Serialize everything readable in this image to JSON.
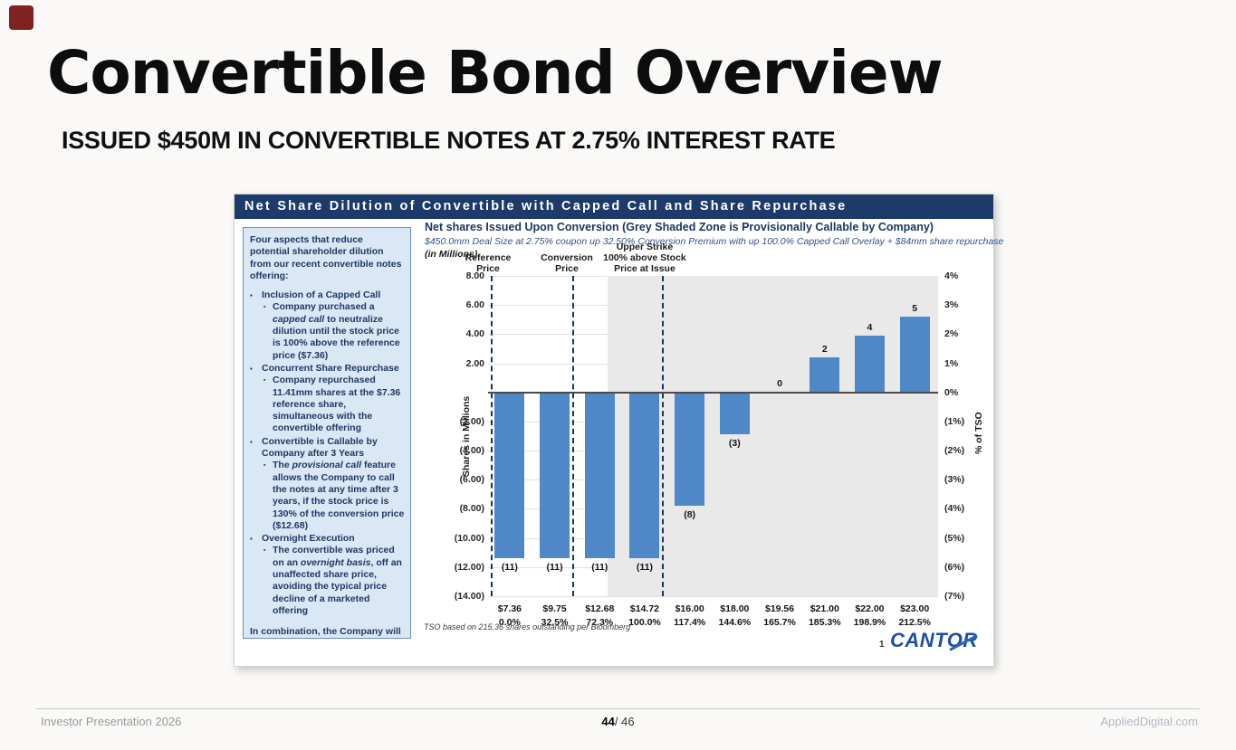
{
  "slide": {
    "title": "Convertible Bond Overview",
    "subtitle": "ISSUED $450M IN CONVERTIBLE NOTES AT 2.75% INTEREST RATE",
    "footer": {
      "left": "Investor Presentation  2026",
      "page_current": "44",
      "page_rest": "/ 46",
      "right": "AppliedDigital.com"
    }
  },
  "panel": {
    "banner": "Net Share Dilution of Convertible with Capped Call and Share Repurchase",
    "sidebar": {
      "header": "Four aspects that reduce potential shareholder dilution from our recent convertible notes offering:",
      "bullets": [
        {
          "title": "Inclusion of a Capped Call",
          "detail_pre": "Company purchased a ",
          "detail_italic": "capped call",
          "detail_post": " to neutralize dilution until the stock price is 100% above the reference price ($7.36)"
        },
        {
          "title": "Concurrent Share Repurchase",
          "detail_pre": "Company repurchased 11.41mm shares at the $7.36 reference share, simultaneous with the convertible offering",
          "detail_italic": "",
          "detail_post": ""
        },
        {
          "title": "Convertible is Callable by Company after 3 Years",
          "detail_pre": "The ",
          "detail_italic": "provisional call",
          "detail_post": " feature allows the Company to call the notes at any time after 3 years, if the stock price is 130% of the conversion price ($12.68)"
        },
        {
          "title": "Overnight Execution",
          "detail_pre": "The convertible was priced on an ",
          "detail_italic": "overnight basis",
          "detail_post": ", off an unaffected share price, avoiding the typical price decline of a marketed offering"
        }
      ],
      "footer": "In combination, the Company will not issue more net shares than were repurchased upon conversion, until the share price is +166% above the $7.36 reference price, or $19.56 per share"
    },
    "footnote": "TSO based on 215.36 shares outstanding per Bloomberg",
    "logo_number": "1",
    "logo_text": "CANTOR"
  },
  "chart_data": {
    "type": "bar",
    "title": "Net shares Issued Upon Conversion (Grey Shaded Zone is Provisionally Callable by Company)",
    "subtitle": "$450.0mm Deal Size at 2.75% coupon up 32.50% Conversion Premium with up 100.0% Capped Call Overlay + $84mm share repurchase",
    "units_label": "(in Millions)",
    "ylabel_left": "Shares in Millions",
    "ylabel_right": "% of TSO",
    "ylim": [
      -14,
      8
    ],
    "tick_values": [
      8,
      6,
      4,
      2,
      0,
      -2,
      -4,
      -6,
      -8,
      -10,
      -12,
      -14
    ],
    "tick_labels_left": [
      "8.00",
      "6.00",
      "4.00",
      "2.00",
      "",
      "(2.00)",
      "(4.00)",
      "(6.00)",
      "(8.00)",
      "(10.00)",
      "(12.00)",
      "(14.00)"
    ],
    "tick_labels_right": [
      "4%",
      "3%",
      "2%",
      "1%",
      "0%",
      "(1%)",
      "(2%)",
      "(3%)",
      "(4%)",
      "(5%)",
      "(6%)",
      "(7%)"
    ],
    "categories": [
      {
        "price": "$7.36",
        "pct_return": "0.0%",
        "value": -11.4,
        "label": "(11)"
      },
      {
        "price": "$9.75",
        "pct_return": "32.5%",
        "value": -11.4,
        "label": "(11)"
      },
      {
        "price": "$12.68",
        "pct_return": "72.3%",
        "value": -11.4,
        "label": "(11)"
      },
      {
        "price": "$14.72",
        "pct_return": "100.0%",
        "value": -11.4,
        "label": "(11)"
      },
      {
        "price": "$16.00",
        "pct_return": "117.4%",
        "value": -7.8,
        "label": "(8)"
      },
      {
        "price": "$18.00",
        "pct_return": "144.6%",
        "value": -2.9,
        "label": "(3)"
      },
      {
        "price": "$19.56",
        "pct_return": "165.7%",
        "value": 0,
        "label": "0"
      },
      {
        "price": "$21.00",
        "pct_return": "185.3%",
        "value": 2.4,
        "label": "2"
      },
      {
        "price": "$22.00",
        "pct_return": "198.9%",
        "value": 3.9,
        "label": "4"
      },
      {
        "price": "$23.00",
        "pct_return": "212.5%",
        "value": 5.2,
        "label": "5"
      }
    ],
    "price_markers": [
      {
        "lines": [
          "Reference",
          "Price"
        ],
        "line_pct": 0.6,
        "label_pct": 0.0
      },
      {
        "lines": [
          "Conversion",
          "Price"
        ],
        "line_pct": 18.7,
        "label_pct": 17.5
      },
      {
        "lines": [
          "Upper Strike",
          "100% above Stock",
          "Price at Issue"
        ],
        "line_pct": 38.6,
        "label_pct": 34.8
      }
    ],
    "shaded_zone": {
      "from_pct": 26.6,
      "meaning": "Provisionally Callable by Company"
    },
    "colors": {
      "bar": "#4F87C7",
      "shaded_zone": "#E9E9E9",
      "banner_bg": "#1C3A6A",
      "sidebar_bg": "#DAE7F5",
      "navy_text": "#1F3864",
      "accent_red": "#7E2222",
      "cantor_blue": "#1D509E"
    },
    "legend_position": "none",
    "grid": true
  }
}
